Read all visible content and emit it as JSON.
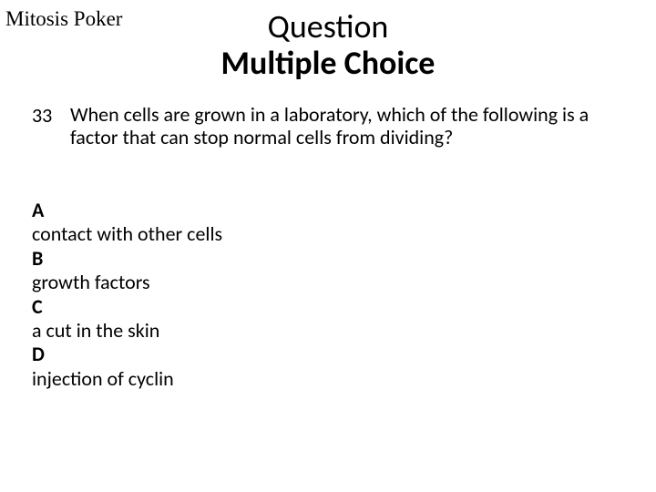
{
  "header": {
    "label": "Mitosis Poker"
  },
  "title": {
    "line1": "Question",
    "line2": "Multiple Choice"
  },
  "question": {
    "number": "33",
    "text": "When cells are grown in a laboratory, which of the following is a factor that can stop normal cells from dividing?"
  },
  "options": {
    "a_letter": "A",
    "a_text": "contact with other cells",
    "b_letter": "B",
    "b_text": "growth factors",
    "c_letter": "C",
    "c_text": "a cut in the skin",
    "d_letter": "D",
    "d_text": "injection of cyclin"
  },
  "styling": {
    "background_color": "#ffffff",
    "text_color": "#000000",
    "title_fontsize": 36,
    "body_fontsize": 22,
    "header_fontsize": 23,
    "header_font": "Times New Roman",
    "body_font": "Calibri"
  }
}
